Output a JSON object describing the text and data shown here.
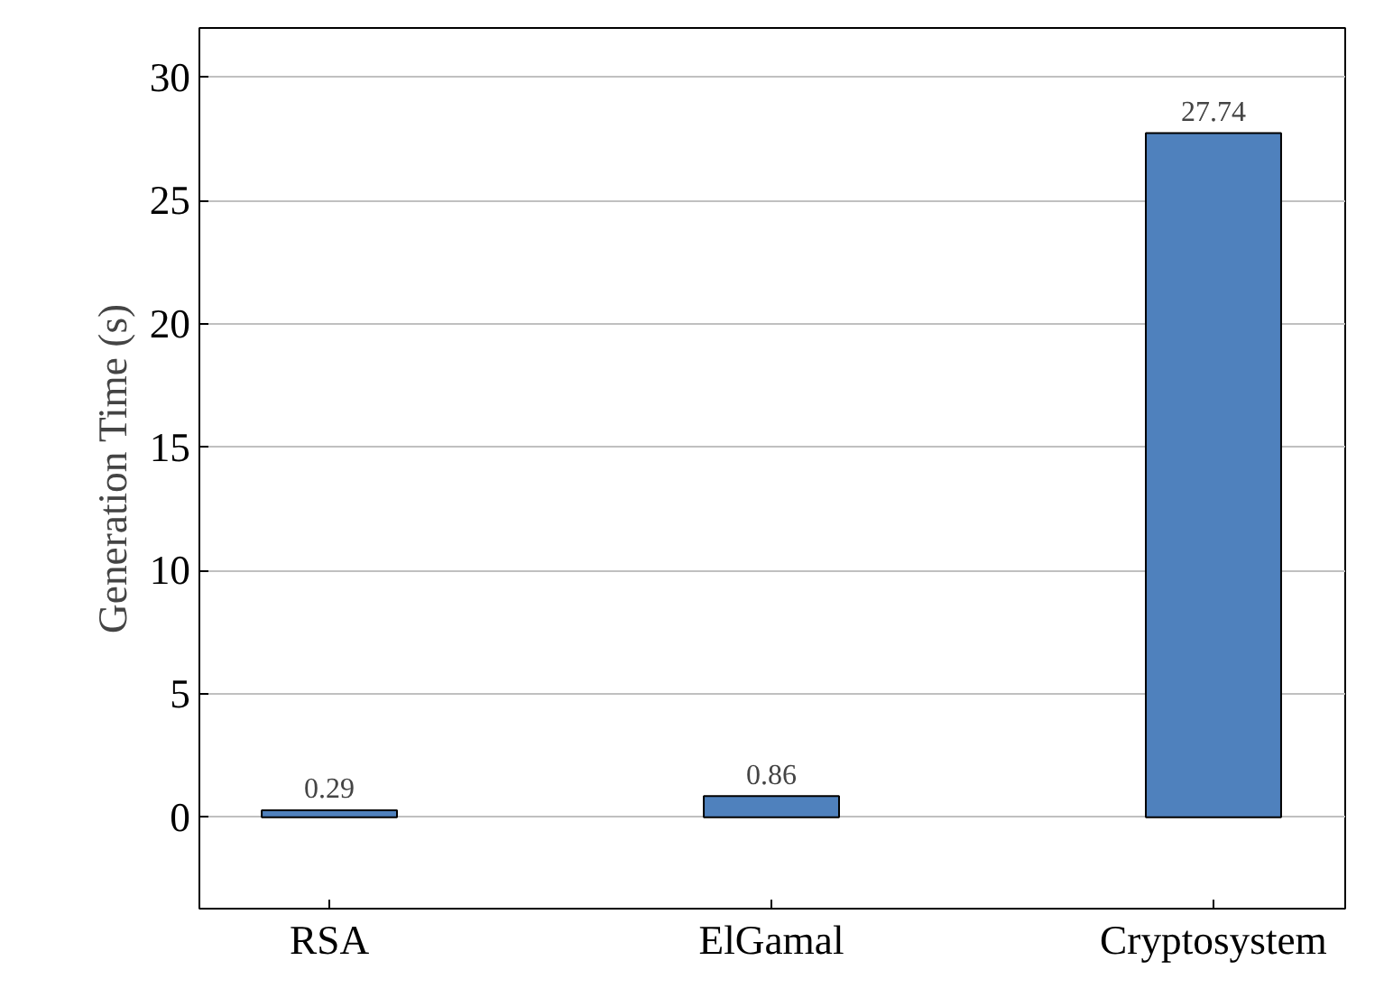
{
  "chart_data": {
    "type": "bar",
    "ylabel": "Generation Time (s)",
    "categories": [
      "RSA",
      "ElGamal",
      "Cryptosystem"
    ],
    "values": [
      0.29,
      0.86,
      27.74
    ],
    "color": "#4f81bd",
    "data_labels": true,
    "ylim": [
      -3.7,
      32
    ],
    "yticks": [
      0,
      5,
      10,
      15,
      20,
      25,
      30
    ],
    "grid": "y"
  }
}
